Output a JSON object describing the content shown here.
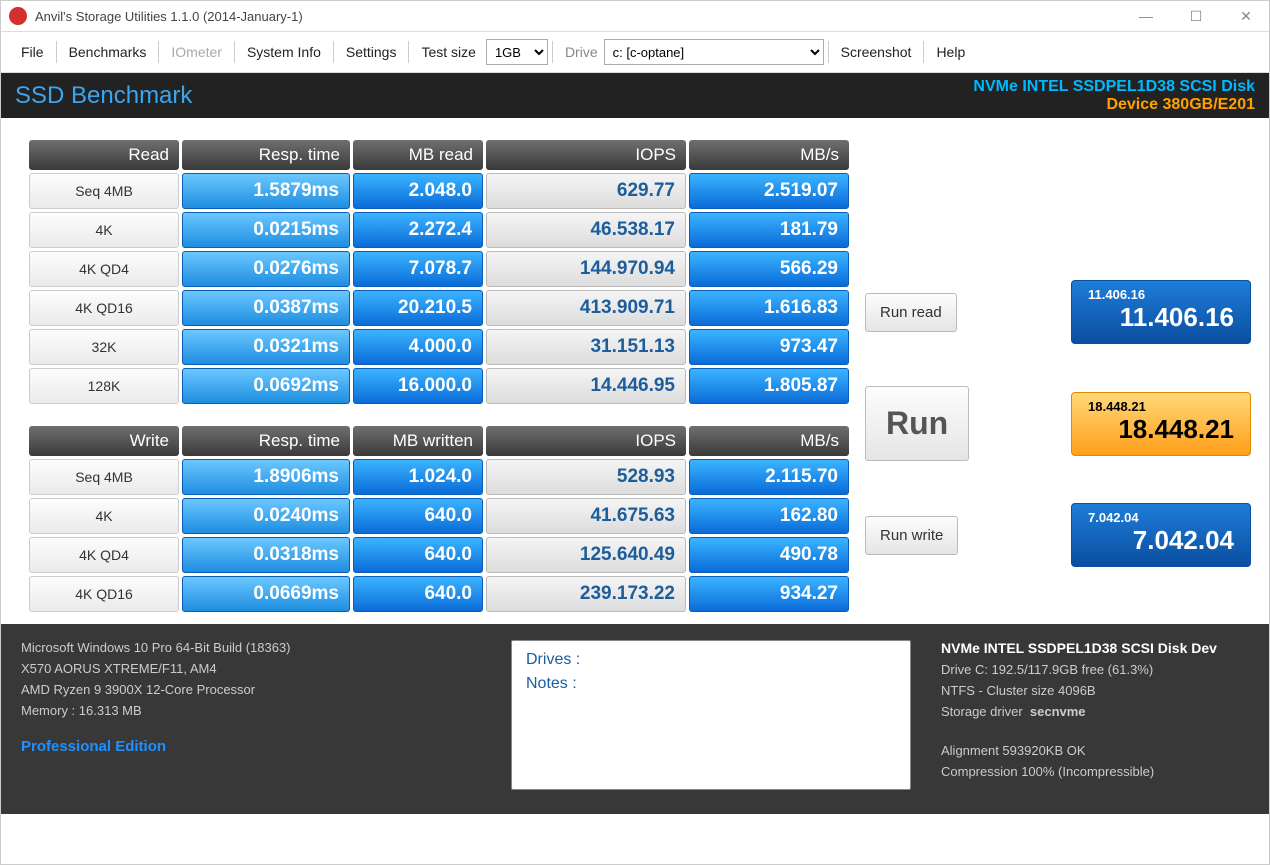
{
  "window": {
    "title": "Anvil's Storage Utilities 1.1.0 (2014-January-1)",
    "icon_glyph": "⊕"
  },
  "toolbar": {
    "file": "File",
    "benchmarks": "Benchmarks",
    "iometer": "IOmeter",
    "system_info": "System Info",
    "settings": "Settings",
    "test_size_label": "Test size",
    "test_size_value": "1GB",
    "drive_label": "Drive",
    "drive_value": "c: [c-optane]",
    "screenshot": "Screenshot",
    "help": "Help"
  },
  "header": {
    "title": "SSD Benchmark",
    "device_line1": "NVMe INTEL SSDPEL1D38 SCSI Disk",
    "device_line2": "Device 380GB/E201"
  },
  "read": {
    "col_labels": [
      "Read",
      "Resp. time",
      "MB read",
      "IOPS",
      "MB/s"
    ],
    "rows": [
      {
        "label": "Seq 4MB",
        "resp": "1.5879ms",
        "mb": "2.048.0",
        "iops": "629.77",
        "mbs": "2.519.07"
      },
      {
        "label": "4K",
        "resp": "0.0215ms",
        "mb": "2.272.4",
        "iops": "46.538.17",
        "mbs": "181.79"
      },
      {
        "label": "4K QD4",
        "resp": "0.0276ms",
        "mb": "7.078.7",
        "iops": "144.970.94",
        "mbs": "566.29"
      },
      {
        "label": "4K QD16",
        "resp": "0.0387ms",
        "mb": "20.210.5",
        "iops": "413.909.71",
        "mbs": "1.616.83"
      },
      {
        "label": "32K",
        "resp": "0.0321ms",
        "mb": "4.000.0",
        "iops": "31.151.13",
        "mbs": "973.47"
      },
      {
        "label": "128K",
        "resp": "0.0692ms",
        "mb": "16.000.0",
        "iops": "14.446.95",
        "mbs": "1.805.87"
      }
    ]
  },
  "write": {
    "col_labels": [
      "Write",
      "Resp. time",
      "MB written",
      "IOPS",
      "MB/s"
    ],
    "rows": [
      {
        "label": "Seq 4MB",
        "resp": "1.8906ms",
        "mb": "1.024.0",
        "iops": "528.93",
        "mbs": "2.115.70"
      },
      {
        "label": "4K",
        "resp": "0.0240ms",
        "mb": "640.0",
        "iops": "41.675.63",
        "mbs": "162.80"
      },
      {
        "label": "4K QD4",
        "resp": "0.0318ms",
        "mb": "640.0",
        "iops": "125.640.49",
        "mbs": "490.78"
      },
      {
        "label": "4K QD16",
        "resp": "0.0669ms",
        "mb": "640.0",
        "iops": "239.173.22",
        "mbs": "934.27"
      }
    ]
  },
  "actions": {
    "run_read": "Run read",
    "run": "Run",
    "run_write": "Run write"
  },
  "scores": {
    "read_small": "11.406.16",
    "read_big": "11.406.16",
    "total_small": "18.448.21",
    "total_big": "18.448.21",
    "write_small": "7.042.04",
    "write_big": "7.042.04"
  },
  "footer": {
    "sys": {
      "os": "Microsoft Windows 10 Pro 64-Bit Build (18363)",
      "mb": "X570 AORUS XTREME/F11, AM4",
      "cpu": "AMD Ryzen 9 3900X 12-Core Processor",
      "mem": "Memory : 16.313 MB",
      "edition": "Professional Edition"
    },
    "notes": {
      "drives": "Drives :",
      "notes": "Notes :"
    },
    "drive": {
      "title": "NVMe INTEL SSDPEL1D38 SCSI Disk Dev",
      "free": "Drive C: 192.5/117.9GB free (61.3%)",
      "fs": "NTFS - Cluster size 4096B",
      "driver_label": "Storage driver",
      "driver_name": "secnvme",
      "align": "Alignment 593920KB OK",
      "comp": "Compression 100% (Incompressible)"
    }
  },
  "colors": {
    "header_bg": "#222222",
    "accent_blue": "#3aa6f0",
    "accent_orange": "#ffa000",
    "cell_blue_top": "#3bb4ff",
    "cell_blue_bottom": "#0a6bd8",
    "cell_grey_text": "#1c5d9c",
    "score_blue": "#1e7dd8",
    "score_orange": "#ff9f1a"
  }
}
